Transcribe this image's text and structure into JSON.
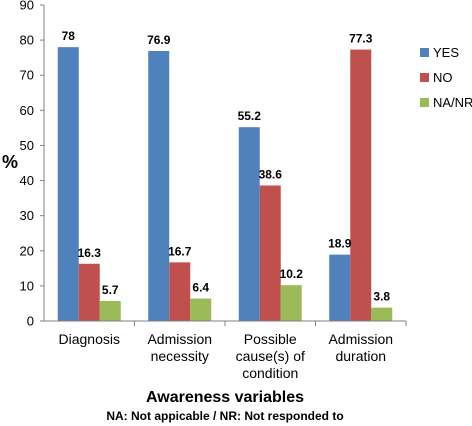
{
  "chart_data": {
    "type": "bar",
    "categories": [
      [
        "Diagnosis"
      ],
      [
        "Admission",
        "necessity"
      ],
      [
        "Possible",
        "cause(s) of",
        "condition"
      ],
      [
        "Admission",
        "duration"
      ]
    ],
    "series": [
      {
        "name": "YES",
        "color": "#4F81BD",
        "values": [
          78,
          76.9,
          55.2,
          18.9
        ]
      },
      {
        "name": "NO",
        "color": "#C0504D",
        "values": [
          16.3,
          16.7,
          38.6,
          77.3
        ]
      },
      {
        "name": "NA/NR",
        "color": "#9BBB59",
        "values": [
          5.7,
          6.4,
          10.2,
          3.8
        ]
      }
    ],
    "ylabel": "%",
    "xlabel": "Awareness variables",
    "note": "NA: Not appicable / NR: Not responded to",
    "ylim": [
      0,
      90
    ],
    "ytick_step": 10,
    "grid": false,
    "legend_position": "right"
  }
}
